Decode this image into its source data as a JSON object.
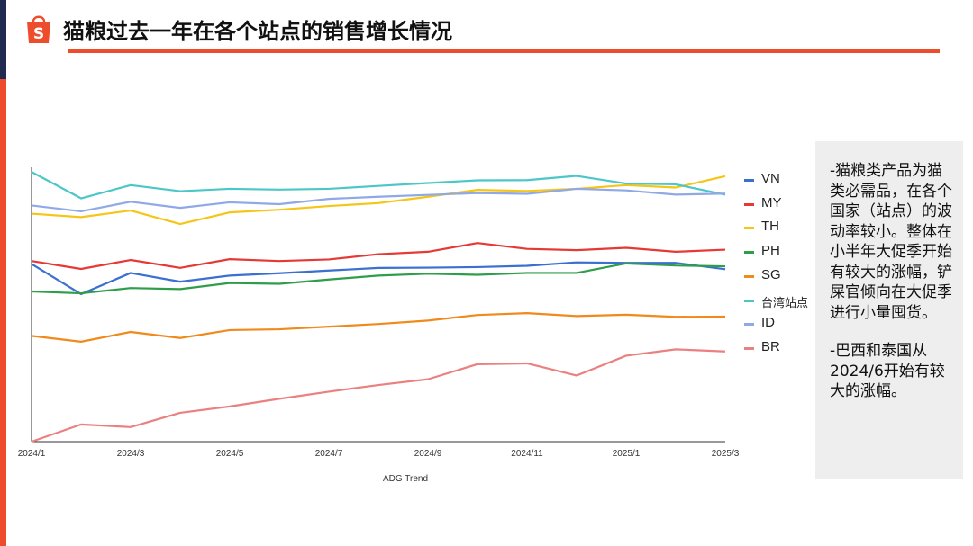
{
  "header": {
    "title": "猫粮过去一年在各个站点的销售增长情况",
    "brand_color": "#ee4d2d"
  },
  "notes": [
    "-猫粮类产品为猫类必需品，在各个国家（站点）的波动率较小。整体在小半年大促季开始有较大的涨幅，铲屎官倾向在大促季进行小量囤货。",
    "-巴西和泰国从2024/6开始有较大的涨幅。"
  ],
  "chart_data": {
    "type": "line",
    "xlabel": "ADG Trend",
    "ylabel": "",
    "x": [
      "2024/1",
      "2024/2",
      "2024/3",
      "2024/4",
      "2024/5",
      "2024/6",
      "2024/7",
      "2024/8",
      "2024/9",
      "2024/10",
      "2024/11",
      "2024/12",
      "2025/1",
      "2025/2",
      "2025/3"
    ],
    "x_tick_labels": [
      "2024/1",
      "",
      "2024/3",
      "",
      "2024/5",
      "",
      "2024/7",
      "",
      "2024/9",
      "",
      "2024/11",
      "",
      "2025/1",
      "",
      "2025/3"
    ],
    "ylim": [
      0,
      100
    ],
    "grid": false,
    "legend_position": "right",
    "series": [
      {
        "name": "VN",
        "color": "#3b6fd1",
        "values": [
          67.2,
          55.8,
          63.8,
          60.5,
          62.8,
          63.7,
          64.7,
          65.7,
          65.8,
          66.0,
          66.5,
          67.8,
          67.6,
          67.6,
          65.2
        ]
      },
      {
        "name": "MY",
        "color": "#e53935",
        "values": [
          68.3,
          65.3,
          68.7,
          65.7,
          69.0,
          68.3,
          68.9,
          70.9,
          71.8,
          75.1,
          72.9,
          72.4,
          73.3,
          71.8,
          72.6
        ]
      },
      {
        "name": "TH",
        "color": "#f5c518",
        "values": [
          86.2,
          84.9,
          87.4,
          82.3,
          86.7,
          87.7,
          89.1,
          90.2,
          92.6,
          95.2,
          94.8,
          95.6,
          97.0,
          96.1,
          100.4
        ]
      },
      {
        "name": "PH",
        "color": "#2e9e4a",
        "values": [
          56.8,
          56.1,
          58.1,
          57.7,
          60.0,
          59.7,
          61.3,
          62.8,
          63.5,
          63.1,
          63.8,
          63.8,
          67.4,
          66.6,
          66.3
        ]
      },
      {
        "name": "SG",
        "color": "#f08a1c",
        "values": [
          40.0,
          37.8,
          41.5,
          39.2,
          42.2,
          42.5,
          43.5,
          44.5,
          45.8,
          47.9,
          48.6,
          47.5,
          48.0,
          47.2,
          47.3
        ]
      },
      {
        "name": "台湾站点",
        "color": "#4cc7c7",
        "values": [
          102.0,
          92.0,
          97.0,
          94.7,
          95.6,
          95.3,
          95.6,
          96.7,
          97.8,
          98.8,
          98.9,
          100.5,
          97.6,
          97.3,
          93.4
        ]
      },
      {
        "name": "ID",
        "color": "#8fa9e6",
        "values": [
          89.3,
          87.1,
          90.7,
          88.4,
          90.5,
          89.8,
          91.8,
          92.6,
          93.3,
          94.0,
          93.7,
          95.6,
          95.0,
          93.4,
          93.8
        ]
      },
      {
        "name": "BR",
        "color": "#eb8080",
        "values": [
          0.0,
          6.5,
          5.5,
          10.9,
          13.3,
          16.2,
          18.9,
          21.4,
          23.6,
          29.3,
          29.6,
          25.0,
          32.5,
          34.9,
          34.1
        ]
      }
    ]
  }
}
